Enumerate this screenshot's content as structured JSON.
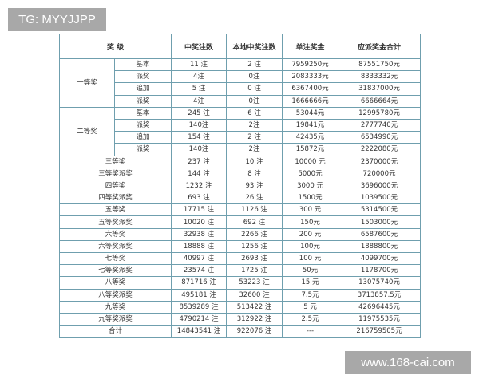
{
  "watermark_top": "TG: MYYJJPP",
  "watermark_bottom": "www.168-cai.com",
  "table": {
    "headers": [
      "奖 级",
      "中奖注数",
      "本地中奖注数",
      "单注奖金",
      "应派奖金合计"
    ],
    "groups": [
      {
        "label": "一等奖",
        "rows": [
          [
            "基本",
            "11 注",
            "2 注",
            "7959250元",
            "87551750元"
          ],
          [
            "派奖",
            "4注",
            "0注",
            "2083333元",
            "8333332元"
          ],
          [
            "追加",
            "5 注",
            "0 注",
            "6367400元",
            "31837000元"
          ],
          [
            "派奖",
            "4注",
            "0注",
            "1666666元",
            "6666664元"
          ]
        ]
      },
      {
        "label": "二等奖",
        "rows": [
          [
            "基本",
            "245 注",
            "6 注",
            "53044元",
            "12995780元"
          ],
          [
            "派奖",
            "140注",
            "2注",
            "19841元",
            "2777740元"
          ],
          [
            "追加",
            "154 注",
            "2 注",
            "42435元",
            "6534990元"
          ],
          [
            "派奖",
            "140注",
            "2注",
            "15872元",
            "2222080元"
          ]
        ]
      }
    ],
    "rows": [
      [
        "三等奖",
        "237 注",
        "10 注",
        "10000 元",
        "2370000元"
      ],
      [
        "三等奖派奖",
        "144 注",
        "8 注",
        "5000元",
        "720000元"
      ],
      [
        "四等奖",
        "1232 注",
        "93 注",
        "3000 元",
        "3696000元"
      ],
      [
        "四等奖派奖",
        "693 注",
        "26 注",
        "1500元",
        "1039500元"
      ],
      [
        "五等奖",
        "17715 注",
        "1126 注",
        "300 元",
        "5314500元"
      ],
      [
        "五等奖派奖",
        "10020 注",
        "692 注",
        "150元",
        "1503000元"
      ],
      [
        "六等奖",
        "32938 注",
        "2266 注",
        "200 元",
        "6587600元"
      ],
      [
        "六等奖派奖",
        "18888 注",
        "1256 注",
        "100元",
        "1888800元"
      ],
      [
        "七等奖",
        "40997 注",
        "2693 注",
        "100 元",
        "4099700元"
      ],
      [
        "七等奖派奖",
        "23574 注",
        "1725 注",
        "50元",
        "1178700元"
      ],
      [
        "八等奖",
        "871716 注",
        "53223 注",
        "15 元",
        "13075740元"
      ],
      [
        "八等奖派奖",
        "495181 注",
        "32600 注",
        "7.5元",
        "3713857.5元"
      ],
      [
        "九等奖",
        "8539289 注",
        "513422 注",
        "5 元",
        "42696445元"
      ],
      [
        "九等奖派奖",
        "4790214 注",
        "312922 注",
        "2.5元",
        "11975535元"
      ],
      [
        "合计",
        "14843541 注",
        "922076 注",
        "---",
        "216759505元"
      ]
    ]
  }
}
